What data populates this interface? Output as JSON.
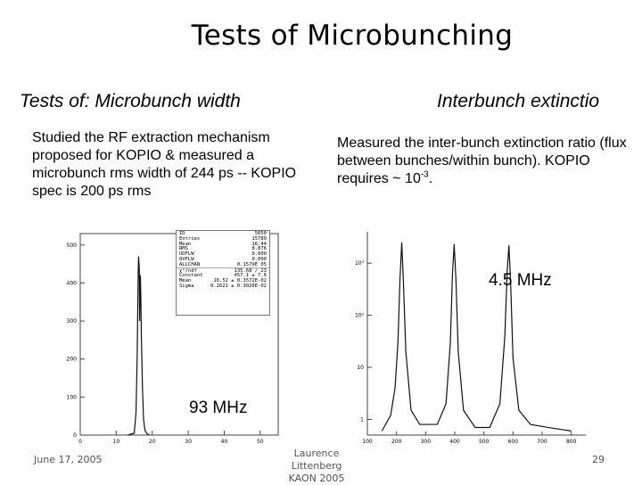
{
  "slide": {
    "title": "Tests of Microbunching",
    "subtitle_left": "Tests of: Microbunch width",
    "subtitle_right": "Interbunch extinctio",
    "text_left": "Studied the RF extraction mechanism proposed for KOPIO & measured a microbunch rms width of 244 ps  -- KOPIO spec is 200 ps rms",
    "text_right_before": "Measured the inter-bunch extinction ratio (flux between bunches/within bunch). KOPIO requires ~ 10",
    "text_right_exp": "-3",
    "text_right_after": ".",
    "footer_date": "June 17, 2005",
    "footer_author": "Laurence Littenberg",
    "footer_venue": "KAON 2005",
    "page_number": "29",
    "label_left_plot": "93 MHz",
    "label_right_plot": "4.5 MHz"
  },
  "stats_box": [
    {
      "k": "ID",
      "v": "5050"
    },
    {
      "k": "Entries",
      "v": "15789"
    },
    {
      "k": "Mean",
      "v": "16.44"
    },
    {
      "k": "RMS",
      "v": "8.876"
    },
    {
      "k": "UDFLW",
      "v": "0.000"
    },
    {
      "k": "OVFLW",
      "v": "0.000"
    },
    {
      "k": "ALLCHAN",
      "v": "0.1579E 05"
    },
    {
      "k": "χ²/ndf",
      "v": "135.68 / 23"
    },
    {
      "k": "Constant",
      "v": "457.1 ±   7.6"
    },
    {
      "k": "Mean",
      "v": "16.52 ± 0.3572E-02"
    },
    {
      "k": "Sigma",
      "v": "0.2621 ± 0.3020E-02"
    }
  ],
  "chart_data": [
    {
      "type": "line",
      "title": "",
      "xlabel": "",
      "ylabel": "",
      "x_ticks": [
        0,
        10,
        20,
        30,
        40,
        50
      ],
      "y_ticks": [
        0,
        100,
        200,
        300,
        400,
        500
      ],
      "xlim": [
        0,
        55
      ],
      "ylim": [
        0,
        530
      ],
      "grid": false,
      "series": [
        {
          "x": [
            13.2,
            15.0,
            15.5,
            15.8,
            16.0,
            16.1,
            16.2,
            16.4,
            16.5,
            16.7,
            16.8,
            17.0,
            17.3,
            17.6,
            18.0,
            18.6,
            19.2
          ],
          "y": [
            0,
            5,
            60,
            200,
            350,
            420,
            470,
            440,
            300,
            420,
            380,
            250,
            120,
            40,
            12,
            3,
            0
          ]
        }
      ]
    },
    {
      "type": "line",
      "title": "",
      "xlabel": "",
      "ylabel": "",
      "x_ticks": [
        100,
        200,
        300,
        400,
        500,
        600,
        700,
        800
      ],
      "y_ticks_labels": [
        "1",
        "10",
        "10²",
        "10³"
      ],
      "yscale": "log",
      "xlim": [
        100,
        850
      ],
      "ylim": [
        0.5,
        4000
      ],
      "grid": false,
      "series": [
        {
          "x": [
            150,
            180,
            195,
            205,
            212,
            218,
            224,
            232,
            250,
            280,
            340,
            370,
            385,
            392,
            398,
            404,
            412,
            430,
            470,
            520,
            555,
            572,
            580,
            586,
            592,
            600,
            620,
            660,
            720,
            800
          ],
          "y": [
            0.6,
            1.2,
            4,
            30,
            500,
            2500,
            400,
            20,
            1.5,
            0.8,
            0.8,
            2,
            30,
            600,
            2300,
            500,
            20,
            1.5,
            0.7,
            0.7,
            2,
            40,
            700,
            2200,
            400,
            15,
            1.5,
            0.8,
            0.7,
            0.6
          ]
        }
      ]
    }
  ]
}
